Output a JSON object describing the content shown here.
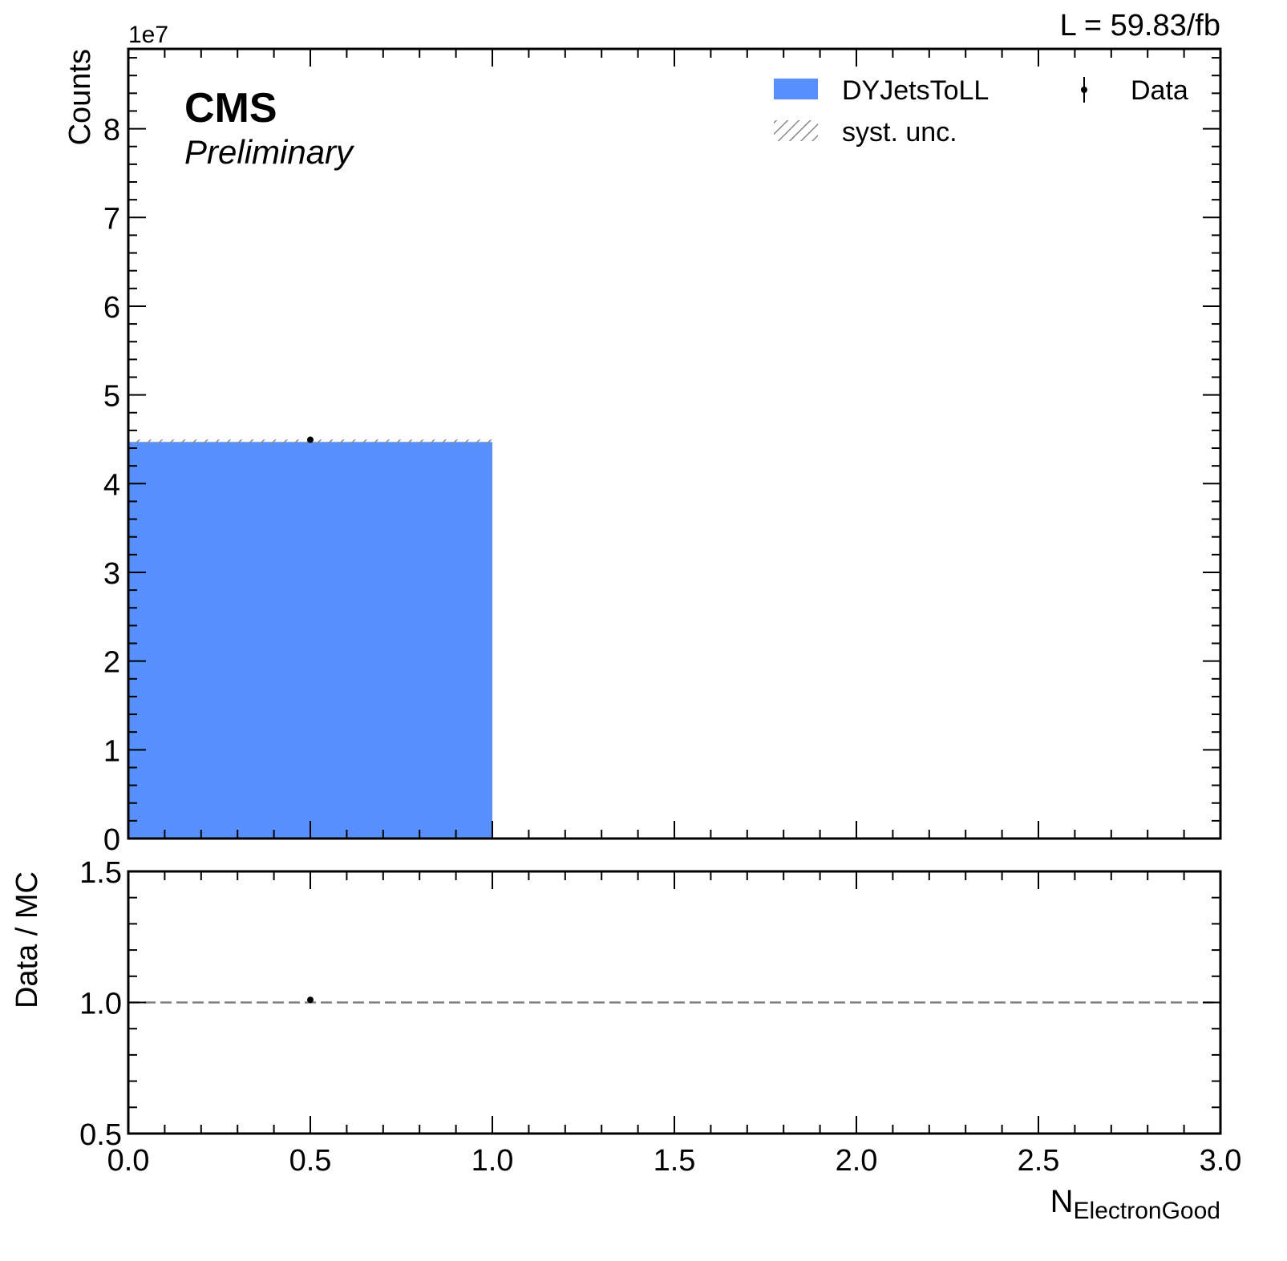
{
  "header": {
    "lumi_label": "L = 59.83/fb",
    "experiment": "CMS",
    "status": "Preliminary"
  },
  "colors": {
    "mc": "#5790fc",
    "syst": "#888888",
    "data": "#000000",
    "ratio_line": "#808080"
  },
  "chart_data": [
    {
      "type": "bar",
      "panel": "main",
      "bins": [
        [
          0,
          1
        ],
        [
          1,
          2
        ],
        [
          2,
          3
        ]
      ],
      "series": [
        {
          "name": "DYJetsToLL",
          "kind": "histogram",
          "values": [
            44700000,
            0,
            0
          ]
        },
        {
          "name": "Data",
          "kind": "points",
          "x": [
            0.5
          ],
          "values": [
            44950000
          ]
        }
      ],
      "syst_label": "syst. unc.",
      "ylabel": "Counts",
      "y_exponent_label": "1e7",
      "ylim": [
        0,
        89000000
      ],
      "yticks": [
        0,
        1,
        2,
        3,
        4,
        5,
        6,
        7,
        8
      ],
      "xlim": [
        0,
        3
      ],
      "legend": "top-right"
    },
    {
      "type": "scatter",
      "panel": "ratio",
      "x": [
        0.5
      ],
      "y": [
        1.01
      ],
      "ylabel": "Data / MC",
      "xlabel": "N",
      "xlabel_sub": "ElectronGood",
      "ylim": [
        0.5,
        1.5
      ],
      "yticks": [
        "0.5",
        "1.0",
        "1.5"
      ],
      "xlim": [
        0,
        3
      ],
      "xticks": [
        "0.0",
        "0.5",
        "1.0",
        "1.5",
        "2.0",
        "2.5",
        "3.0"
      ],
      "reference_line": 1.0
    }
  ]
}
